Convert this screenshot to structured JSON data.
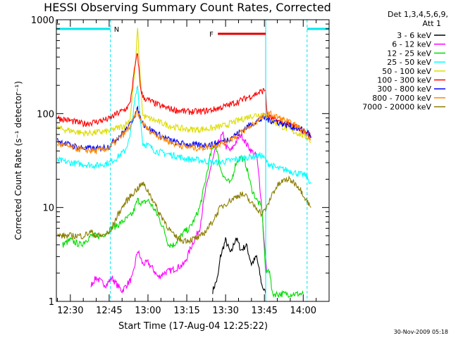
{
  "chart_data": {
    "type": "line",
    "title": "HESSI Observing Summary Count Rates, Corrected",
    "xlabel": "Start Time (17-Aug-04 12:25:22)",
    "ylabel": "Corrected Count Rate (s⁻¹ detector⁻¹)",
    "y_scale": "log",
    "ylim": [
      1,
      1000
    ],
    "y_ticks": [
      "1",
      "10",
      "100",
      "1000"
    ],
    "xlim_minutes": [
      -5.4,
      100.0
    ],
    "x_ticks": [
      {
        "m": 0,
        "label": "12:30"
      },
      {
        "m": 15,
        "label": "12:45"
      },
      {
        "m": 30,
        "label": "13:00"
      },
      {
        "m": 45,
        "label": "13:15"
      },
      {
        "m": 60,
        "label": "13:30"
      },
      {
        "m": 75,
        "label": "13:45"
      },
      {
        "m": 90,
        "label": "14:00"
      }
    ],
    "legend_header": [
      "Det 1,3,4,5,6,9,",
      "Att 1"
    ],
    "legend_position": "right, outside plot",
    "annotations": {
      "night_label": "N",
      "flare_label": "F",
      "night_color": "#00e5ee",
      "flare_color": "#e00000",
      "night_segments": [
        [
          -5.4,
          15.5
        ],
        [
          91.5,
          100
        ]
      ],
      "flare_segment": [
        57,
        75.5
      ],
      "vertical_lines_minutes": [
        15.5,
        75.5,
        91.5
      ]
    },
    "series": [
      {
        "name": "3 - 6 keV",
        "color": "#000000",
        "points": [
          [
            55,
            1.3
          ],
          [
            57,
            1.8
          ],
          [
            58,
            3.0
          ],
          [
            60,
            4.5
          ],
          [
            62,
            3.2
          ],
          [
            64,
            4.8
          ],
          [
            66,
            3.5
          ],
          [
            68,
            4.0
          ],
          [
            70,
            2.5
          ],
          [
            72,
            3.0
          ],
          [
            74,
            1.5
          ],
          [
            75.5,
            1.2
          ]
        ]
      },
      {
        "name": "6 - 12 keV",
        "color": "#ff00ff",
        "points": [
          [
            8,
            1.5
          ],
          [
            10,
            1.8
          ],
          [
            12,
            1.6
          ],
          [
            14,
            1.5
          ],
          [
            16,
            1.8
          ],
          [
            18,
            1.5
          ],
          [
            20,
            1.3
          ],
          [
            24,
            1.8
          ],
          [
            26,
            3.5
          ],
          [
            28,
            2.5
          ],
          [
            30,
            2.6
          ],
          [
            32,
            2.2
          ],
          [
            34,
            1.8
          ],
          [
            36,
            2.0
          ],
          [
            40,
            2.2
          ],
          [
            44,
            2.5
          ],
          [
            47,
            4.0
          ],
          [
            50,
            6.0
          ],
          [
            52,
            14
          ],
          [
            54,
            25
          ],
          [
            56,
            40
          ],
          [
            58,
            55
          ],
          [
            59,
            60
          ],
          [
            60,
            45
          ],
          [
            62,
            40
          ],
          [
            64,
            50
          ],
          [
            66,
            60
          ],
          [
            68,
            48
          ],
          [
            70,
            40
          ],
          [
            72,
            35
          ],
          [
            73,
            20
          ],
          [
            74,
            10
          ],
          [
            75,
            4
          ],
          [
            76,
            2
          ]
        ]
      },
      {
        "name": "12 - 25 keV",
        "color": "#00dd00",
        "points": [
          [
            -3,
            4
          ],
          [
            0,
            4.5
          ],
          [
            4,
            4
          ],
          [
            8,
            5
          ],
          [
            12,
            5
          ],
          [
            16,
            6
          ],
          [
            20,
            7
          ],
          [
            24,
            8.5
          ],
          [
            26,
            12
          ],
          [
            28,
            11
          ],
          [
            30,
            12
          ],
          [
            32,
            10
          ],
          [
            34,
            8
          ],
          [
            36,
            6
          ],
          [
            38,
            4
          ],
          [
            40,
            4
          ],
          [
            44,
            5.5
          ],
          [
            46,
            6
          ],
          [
            48,
            7.5
          ],
          [
            50,
            10
          ],
          [
            52,
            18
          ],
          [
            54,
            35
          ],
          [
            56,
            50
          ],
          [
            58,
            26
          ],
          [
            60,
            20
          ],
          [
            62,
            18
          ],
          [
            64,
            30
          ],
          [
            66,
            35
          ],
          [
            68,
            28
          ],
          [
            70,
            16
          ],
          [
            72,
            12
          ],
          [
            74,
            10
          ],
          [
            75.5,
            2
          ],
          [
            77,
            2.2
          ],
          [
            78,
            1.2
          ],
          [
            80,
            1.2
          ],
          [
            85,
            1.2
          ],
          [
            90,
            1.2
          ]
        ]
      },
      {
        "name": "25 - 50 keV",
        "color": "#00ffff",
        "points": [
          [
            -5,
            32
          ],
          [
            0,
            30
          ],
          [
            5,
            29
          ],
          [
            10,
            28
          ],
          [
            15,
            30
          ],
          [
            18,
            34
          ],
          [
            21,
            40
          ],
          [
            23,
            55
          ],
          [
            25,
            140
          ],
          [
            26,
            200
          ],
          [
            27,
            90
          ],
          [
            28,
            48
          ],
          [
            30,
            46
          ],
          [
            33,
            40
          ],
          [
            36,
            38
          ],
          [
            40,
            36
          ],
          [
            45,
            33
          ],
          [
            50,
            32
          ],
          [
            55,
            30
          ],
          [
            60,
            31
          ],
          [
            65,
            33
          ],
          [
            70,
            35
          ],
          [
            74,
            36
          ],
          [
            75.5,
            32
          ],
          [
            76,
            30
          ],
          [
            78,
            28
          ],
          [
            80,
            26
          ],
          [
            84,
            25
          ],
          [
            88,
            23
          ],
          [
            91,
            22
          ],
          [
            92,
            20
          ],
          [
            93,
            18
          ]
        ]
      },
      {
        "name": "50 - 100 keV",
        "color": "#dddd00",
        "points": [
          [
            -5,
            70
          ],
          [
            0,
            66
          ],
          [
            5,
            62
          ],
          [
            10,
            63
          ],
          [
            15,
            65
          ],
          [
            18,
            70
          ],
          [
            21,
            75
          ],
          [
            23,
            85
          ],
          [
            25,
            300
          ],
          [
            26,
            800
          ],
          [
            27,
            250
          ],
          [
            28,
            95
          ],
          [
            30,
            90
          ],
          [
            35,
            80
          ],
          [
            40,
            72
          ],
          [
            45,
            68
          ],
          [
            50,
            68
          ],
          [
            55,
            70
          ],
          [
            60,
            75
          ],
          [
            65,
            85
          ],
          [
            70,
            95
          ],
          [
            75,
            100
          ],
          [
            77,
            85
          ],
          [
            80,
            78
          ],
          [
            84,
            68
          ],
          [
            88,
            62
          ],
          [
            92,
            55
          ],
          [
            93,
            50
          ]
        ]
      },
      {
        "name": "100 - 300 keV",
        "color": "#ff0000",
        "points": [
          [
            -5,
            90
          ],
          [
            0,
            84
          ],
          [
            5,
            78
          ],
          [
            10,
            82
          ],
          [
            15,
            88
          ],
          [
            18,
            100
          ],
          [
            21,
            110
          ],
          [
            23,
            125
          ],
          [
            25,
            320
          ],
          [
            26,
            440
          ],
          [
            27,
            200
          ],
          [
            28,
            150
          ],
          [
            30,
            140
          ],
          [
            35,
            120
          ],
          [
            40,
            110
          ],
          [
            45,
            105
          ],
          [
            50,
            105
          ],
          [
            55,
            110
          ],
          [
            60,
            120
          ],
          [
            65,
            135
          ],
          [
            70,
            155
          ],
          [
            75.5,
            180
          ],
          [
            76,
            95
          ],
          [
            78,
            88
          ],
          [
            82,
            80
          ],
          [
            86,
            75
          ],
          [
            90,
            66
          ],
          [
            93,
            58
          ]
        ]
      },
      {
        "name": "300 - 800 keV",
        "color": "#0000ff",
        "points": [
          [
            -5,
            52
          ],
          [
            0,
            46
          ],
          [
            5,
            43
          ],
          [
            10,
            42
          ],
          [
            15,
            45
          ],
          [
            18,
            55
          ],
          [
            21,
            65
          ],
          [
            23,
            75
          ],
          [
            25,
            100
          ],
          [
            26,
            110
          ],
          [
            27,
            90
          ],
          [
            28,
            80
          ],
          [
            30,
            70
          ],
          [
            35,
            58
          ],
          [
            40,
            50
          ],
          [
            45,
            47
          ],
          [
            50,
            46
          ],
          [
            55,
            47
          ],
          [
            60,
            52
          ],
          [
            65,
            62
          ],
          [
            70,
            78
          ],
          [
            75,
            90
          ],
          [
            77,
            85
          ],
          [
            80,
            82
          ],
          [
            84,
            75
          ],
          [
            88,
            70
          ],
          [
            92,
            62
          ],
          [
            93,
            55
          ]
        ]
      },
      {
        "name": "800 - 7000 keV",
        "color": "#ff8800",
        "points": [
          [
            -5,
            48
          ],
          [
            0,
            44
          ],
          [
            5,
            41
          ],
          [
            10,
            40
          ],
          [
            15,
            43
          ],
          [
            18,
            52
          ],
          [
            21,
            62
          ],
          [
            23,
            72
          ],
          [
            25,
            95
          ],
          [
            26,
            105
          ],
          [
            27,
            88
          ],
          [
            28,
            78
          ],
          [
            30,
            68
          ],
          [
            35,
            56
          ],
          [
            40,
            48
          ],
          [
            45,
            44
          ],
          [
            50,
            43
          ],
          [
            55,
            45
          ],
          [
            60,
            50
          ],
          [
            65,
            60
          ],
          [
            70,
            75
          ],
          [
            75,
            95
          ],
          [
            77,
            100
          ],
          [
            80,
            92
          ],
          [
            84,
            82
          ],
          [
            88,
            72
          ],
          [
            92,
            60
          ],
          [
            93,
            52
          ]
        ]
      },
      {
        "name": "7000 - 20000 keV",
        "color": "#8b7d00",
        "points": [
          [
            -5,
            5
          ],
          [
            0,
            5
          ],
          [
            5,
            5
          ],
          [
            8,
            5.5
          ],
          [
            10,
            5
          ],
          [
            12,
            5
          ],
          [
            15,
            5.3
          ],
          [
            17,
            7
          ],
          [
            19,
            9
          ],
          [
            21,
            11
          ],
          [
            23,
            13
          ],
          [
            25,
            15
          ],
          [
            27,
            17
          ],
          [
            28,
            18
          ],
          [
            30,
            15
          ],
          [
            32,
            12
          ],
          [
            34,
            9
          ],
          [
            36,
            7.5
          ],
          [
            38,
            6
          ],
          [
            40,
            5
          ],
          [
            43,
            4.5
          ],
          [
            46,
            4.5
          ],
          [
            50,
            4.8
          ],
          [
            52,
            5.5
          ],
          [
            54,
            6.5
          ],
          [
            56,
            8
          ],
          [
            58,
            10
          ],
          [
            60,
            11
          ],
          [
            62,
            12
          ],
          [
            64,
            13
          ],
          [
            66,
            14
          ],
          [
            68,
            13
          ],
          [
            70,
            11
          ],
          [
            72,
            10
          ],
          [
            74,
            8.5
          ],
          [
            76,
            10
          ],
          [
            78,
            14
          ],
          [
            80,
            17
          ],
          [
            82,
            19
          ],
          [
            84,
            20
          ],
          [
            86,
            19
          ],
          [
            88,
            17
          ],
          [
            90,
            14
          ],
          [
            92,
            11
          ],
          [
            93,
            10
          ]
        ]
      }
    ]
  },
  "footer_timestamp": "30-Nov-2009 05:18"
}
